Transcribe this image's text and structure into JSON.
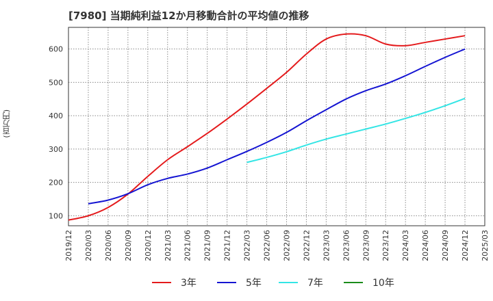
{
  "title": "[7980]  当期純利益12か月移動合計の平均値の推移",
  "y_unit": "(百万円)",
  "colors": {
    "3年": "#e41a1c",
    "5年": "#1414d2",
    "7年": "#33e5e5",
    "10年": "#1a8c1a",
    "grid": "#888888",
    "axis": "#333333"
  },
  "chart_data": {
    "type": "line",
    "title": "[7980]  当期純利益12か月移動合計の平均値の推移",
    "ylabel": "(百万円)",
    "xlabel": "",
    "ylim": [
      70,
      665
    ],
    "xlim": [
      "2019/12",
      "2025/03"
    ],
    "yticks": [
      100,
      200,
      300,
      400,
      500,
      600
    ],
    "xticks": [
      "2019/12",
      "2020/03",
      "2020/06",
      "2020/09",
      "2020/12",
      "2021/03",
      "2021/06",
      "2021/09",
      "2021/12",
      "2022/03",
      "2022/06",
      "2022/09",
      "2022/12",
      "2023/03",
      "2023/06",
      "2023/09",
      "2023/12",
      "2024/03",
      "2024/06",
      "2024/09",
      "2024/12",
      "2025/03"
    ],
    "grid": true,
    "legend_position": "bottom",
    "series": [
      {
        "name": "3年",
        "x": [
          "2019/12",
          "2020/03",
          "2020/06",
          "2020/09",
          "2020/12",
          "2021/03",
          "2021/06",
          "2021/09",
          "2021/12",
          "2022/03",
          "2022/06",
          "2022/09",
          "2022/12",
          "2023/03",
          "2023/06",
          "2023/09",
          "2023/12",
          "2024/03",
          "2024/06",
          "2024/09",
          "2024/12"
        ],
        "values": [
          87,
          100,
          125,
          165,
          218,
          268,
          307,
          347,
          390,
          435,
          482,
          530,
          585,
          630,
          645,
          640,
          615,
          610,
          620,
          630,
          640
        ]
      },
      {
        "name": "5年",
        "x": [
          "2020/03",
          "2020/06",
          "2020/09",
          "2020/12",
          "2021/03",
          "2021/06",
          "2021/09",
          "2021/12",
          "2022/03",
          "2022/06",
          "2022/09",
          "2022/12",
          "2023/03",
          "2023/06",
          "2023/09",
          "2023/12",
          "2024/03",
          "2024/06",
          "2024/09",
          "2024/12"
        ],
        "values": [
          136,
          147,
          166,
          193,
          212,
          225,
          243,
          268,
          293,
          320,
          350,
          385,
          418,
          450,
          475,
          495,
          520,
          548,
          575,
          600
        ]
      },
      {
        "name": "7年",
        "x": [
          "2022/03",
          "2022/06",
          "2022/09",
          "2022/12",
          "2023/03",
          "2023/06",
          "2023/09",
          "2023/12",
          "2024/03",
          "2024/06",
          "2024/09",
          "2024/12"
        ],
        "values": [
          260,
          275,
          292,
          312,
          330,
          345,
          360,
          375,
          392,
          410,
          430,
          452
        ]
      },
      {
        "name": "10年",
        "x": [],
        "values": []
      }
    ]
  }
}
